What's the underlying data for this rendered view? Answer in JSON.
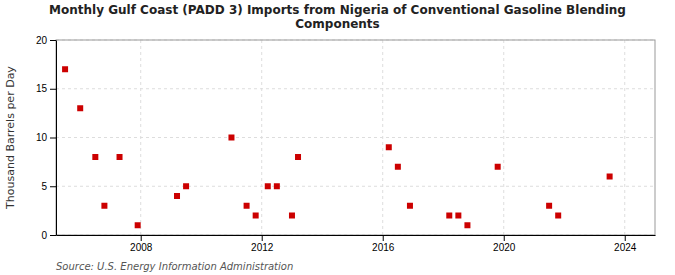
{
  "chart_data": {
    "type": "scatter",
    "title": "Monthly Gulf Coast (PADD 3) Imports from Nigeria of Conventional Gasoline Blending\nComponents",
    "ylabel": "Thousand Barrels per Day",
    "annotations": [
      "Source: U.S. Energy Information Administration"
    ],
    "color": "#cc0000",
    "marker": "square",
    "grid": true,
    "xlim": [
      2005.2,
      2025.0
    ],
    "xticks": [
      2008,
      2012,
      2016,
      2020,
      2024
    ],
    "ylim": [
      0,
      20
    ],
    "yticks": [
      0,
      5,
      10,
      15,
      20
    ],
    "x": [
      2005.5,
      2006.0,
      2006.5,
      2006.8,
      2007.3,
      2007.9,
      2009.2,
      2009.5,
      2011.0,
      2011.5,
      2011.8,
      2012.2,
      2012.5,
      2013.0,
      2013.2,
      2016.2,
      2016.5,
      2016.9,
      2018.2,
      2018.5,
      2018.8,
      2019.8,
      2021.5,
      2021.8,
      2023.5
    ],
    "values": [
      17.0,
      13.0,
      8.0,
      3.0,
      8.0,
      1.0,
      4.0,
      5.0,
      10.0,
      3.0,
      2.0,
      5.0,
      5.0,
      2.0,
      8.0,
      9.0,
      7.0,
      3.0,
      2.0,
      2.0,
      1.0,
      7.0,
      3.0,
      2.0,
      6.0
    ]
  }
}
